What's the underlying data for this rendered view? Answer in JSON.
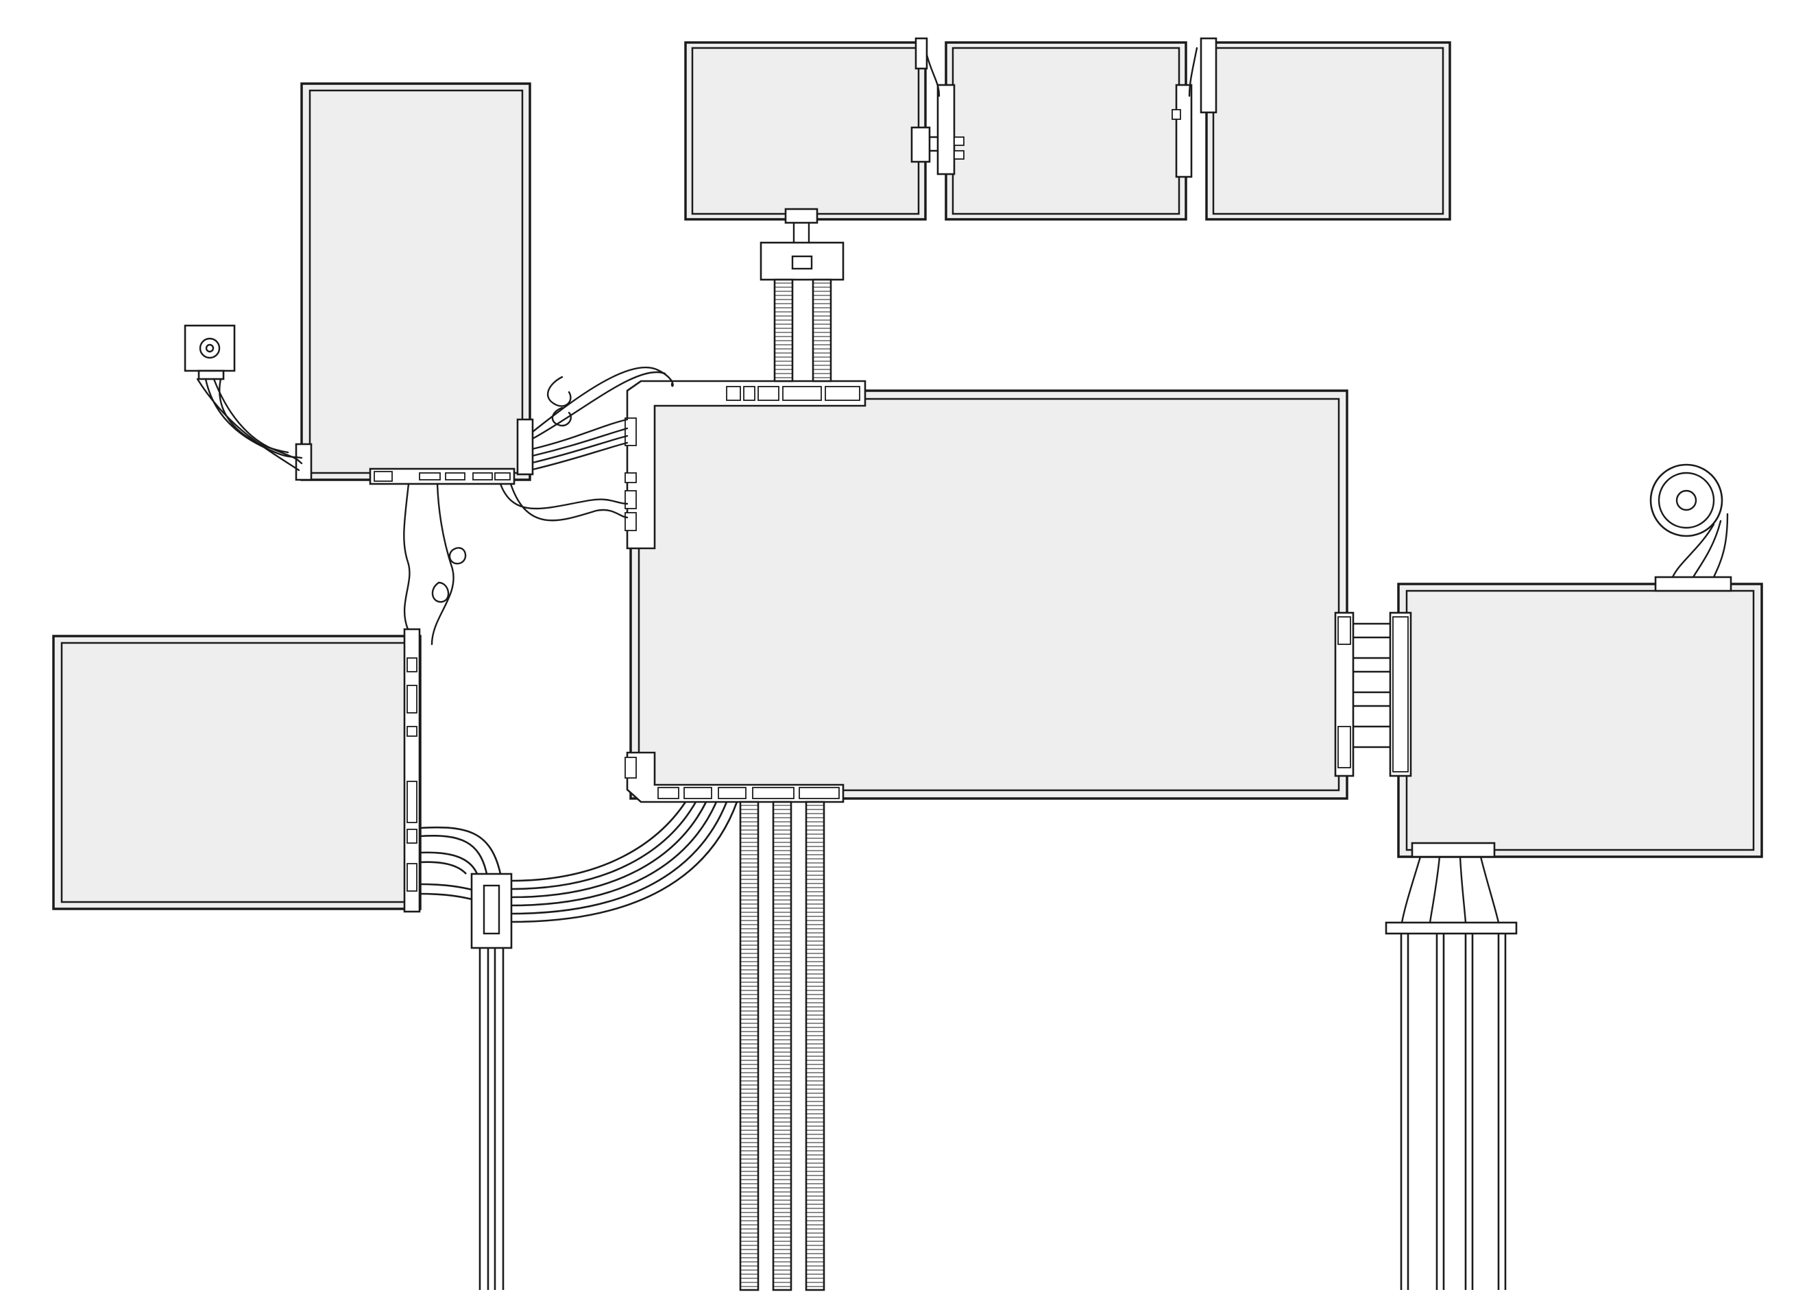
{
  "diagram": {
    "style": "hand-drawn line art",
    "colors": {
      "panel_fill": "#eeeeee",
      "ink": "#1a1a1a",
      "background": "#ffffff"
    },
    "panels": [
      {
        "id": "top-left-tall-panel"
      },
      {
        "id": "top-strip-panel-1"
      },
      {
        "id": "top-strip-panel-2"
      },
      {
        "id": "top-strip-panel-3"
      },
      {
        "id": "central-main-panel"
      },
      {
        "id": "left-middle-panel"
      },
      {
        "id": "right-panel"
      }
    ],
    "peripherals": [
      {
        "id": "small-square-sensor"
      },
      {
        "id": "round-speaker-device"
      },
      {
        "id": "mount-bracket"
      },
      {
        "id": "splitter-hub"
      }
    ]
  }
}
